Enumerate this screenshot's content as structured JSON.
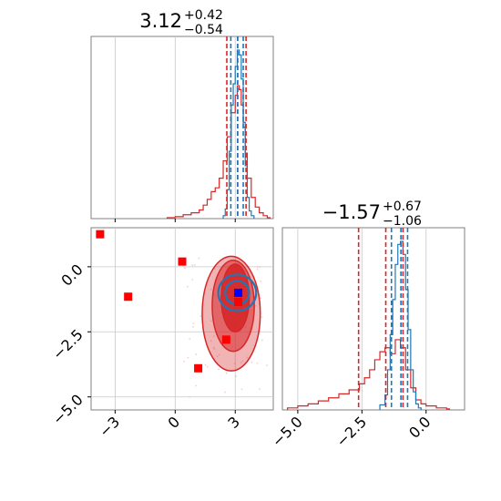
{
  "colors": {
    "series_a": "#d62728",
    "series_b": "#1f77b4",
    "marker_red": "#ff0000",
    "marker_blue": "#0000ff",
    "grid": "#c8c8c8"
  },
  "chart_data": [
    {
      "type": "histogram",
      "panel": "top-left",
      "title": {
        "main": "3.12",
        "upper": "+0.42",
        "lower": "−0.54"
      },
      "xlim": [
        -4.2,
        4.9
      ],
      "x_gridlines": [
        -3,
        0,
        3
      ],
      "grid": true,
      "series": [
        {
          "color": "#d62728",
          "vlines": [
            2.58,
            3.12,
            3.54
          ],
          "bins": [
            [
              -0.4,
              1
            ],
            [
              0.0,
              2
            ],
            [
              0.4,
              4
            ],
            [
              0.8,
              6
            ],
            [
              1.2,
              9
            ],
            [
              1.4,
              14
            ],
            [
              1.6,
              20
            ],
            [
              1.8,
              28
            ],
            [
              2.0,
              32
            ],
            [
              2.2,
              42
            ],
            [
              2.4,
              60
            ],
            [
              2.6,
              85
            ],
            [
              2.8,
              110
            ],
            [
              3.0,
              128
            ],
            [
              3.1,
              138
            ],
            [
              3.2,
              134
            ],
            [
              3.3,
              118
            ],
            [
              3.4,
              95
            ],
            [
              3.5,
              68
            ],
            [
              3.6,
              42
            ],
            [
              3.8,
              22
            ],
            [
              4.0,
              12
            ],
            [
              4.2,
              6
            ],
            [
              4.4,
              3
            ],
            [
              4.6,
              1
            ]
          ]
        },
        {
          "color": "#1f77b4",
          "vlines": [
            2.78,
            3.12,
            3.4
          ],
          "bins": [
            [
              2.4,
              3
            ],
            [
              2.5,
              10
            ],
            [
              2.6,
              30
            ],
            [
              2.7,
              70
            ],
            [
              2.8,
              118
            ],
            [
              2.9,
              140
            ],
            [
              3.0,
              158
            ],
            [
              3.1,
              175
            ],
            [
              3.2,
              170
            ],
            [
              3.3,
              145
            ],
            [
              3.4,
              100
            ],
            [
              3.5,
              55
            ],
            [
              3.6,
              22
            ],
            [
              3.7,
              8
            ],
            [
              3.8,
              3
            ]
          ]
        }
      ]
    },
    {
      "type": "scatter",
      "panel": "bottom-left",
      "xlim": [
        -4.2,
        4.9
      ],
      "ylim": [
        -5.5,
        1.5
      ],
      "x_ticks": [
        -3,
        0,
        3
      ],
      "y_ticks": [
        0.0,
        -2.5,
        -5.0
      ],
      "x_tick_labels": [
        "−3",
        "0",
        "3"
      ],
      "y_tick_labels": [
        "0.0",
        "−2.5",
        "−5.0"
      ],
      "grid": true,
      "contours": [
        {
          "color": "#d62728",
          "cx": 2.8,
          "cy": -1.8,
          "rx": 1.45,
          "ry": 2.2
        },
        {
          "color": "#d62728",
          "cx": 2.9,
          "cy": -1.5,
          "rx": 1.05,
          "ry": 1.75
        },
        {
          "color": "#d62728",
          "cx": 3.0,
          "cy": -1.2,
          "rx": 0.7,
          "ry": 1.3
        },
        {
          "color": "#1f77b4",
          "cx": 3.1,
          "cy": -1.0,
          "rx": 0.95,
          "ry": 0.7
        },
        {
          "color": "#1f77b4",
          "cx": 3.1,
          "cy": -1.0,
          "rx": 0.6,
          "ry": 0.45
        }
      ],
      "red_markers": [
        [
          -3.75,
          1.25
        ],
        [
          -2.35,
          -1.15
        ],
        [
          0.35,
          0.2
        ],
        [
          1.15,
          -3.9
        ],
        [
          3.15,
          -1.35
        ],
        [
          2.55,
          -2.8
        ]
      ],
      "blue_markers": [
        [
          3.15,
          -1.0
        ]
      ]
    },
    {
      "type": "histogram",
      "panel": "bottom-right",
      "title": {
        "main": "−1.57",
        "upper": "+0.67",
        "lower": "−1.06"
      },
      "xlim": [
        -5.6,
        1.5
      ],
      "x_ticks": [
        -5.0,
        -2.5,
        0.0
      ],
      "x_tick_labels": [
        "−5.0",
        "−2.5",
        "0.0"
      ],
      "grid": true,
      "series": [
        {
          "color": "#d62728",
          "vlines": [
            -2.63,
            -1.57,
            -0.9
          ],
          "bins": [
            [
              -5.4,
              2
            ],
            [
              -5.0,
              4
            ],
            [
              -4.6,
              6
            ],
            [
              -4.2,
              9
            ],
            [
              -3.8,
              12
            ],
            [
              -3.4,
              16
            ],
            [
              -3.0,
              20
            ],
            [
              -2.6,
              26
            ],
            [
              -2.4,
              32
            ],
            [
              -2.2,
              40
            ],
            [
              -2.0,
              50
            ],
            [
              -1.8,
              58
            ],
            [
              -1.6,
              62
            ],
            [
              -1.4,
              56
            ],
            [
              -1.2,
              70
            ],
            [
              -1.0,
              62
            ],
            [
              -0.8,
              40
            ],
            [
              -0.6,
              22
            ],
            [
              -0.4,
              10
            ],
            [
              -0.2,
              6
            ],
            [
              0.0,
              4
            ],
            [
              0.4,
              2
            ],
            [
              0.8,
              1
            ]
          ]
        },
        {
          "color": "#1f77b4",
          "vlines": [
            -1.35,
            -0.98,
            -0.72
          ],
          "bins": [
            [
              -1.8,
              5
            ],
            [
              -1.6,
              15
            ],
            [
              -1.5,
              40
            ],
            [
              -1.4,
              75
            ],
            [
              -1.3,
              110
            ],
            [
              -1.2,
              145
            ],
            [
              -1.1,
              165
            ],
            [
              -1.0,
              168
            ],
            [
              -0.9,
              155
            ],
            [
              -0.8,
              120
            ],
            [
              -0.7,
              80
            ],
            [
              -0.6,
              40
            ],
            [
              -0.5,
              18
            ],
            [
              -0.4,
              6
            ],
            [
              -0.3,
              2
            ]
          ]
        }
      ]
    }
  ]
}
